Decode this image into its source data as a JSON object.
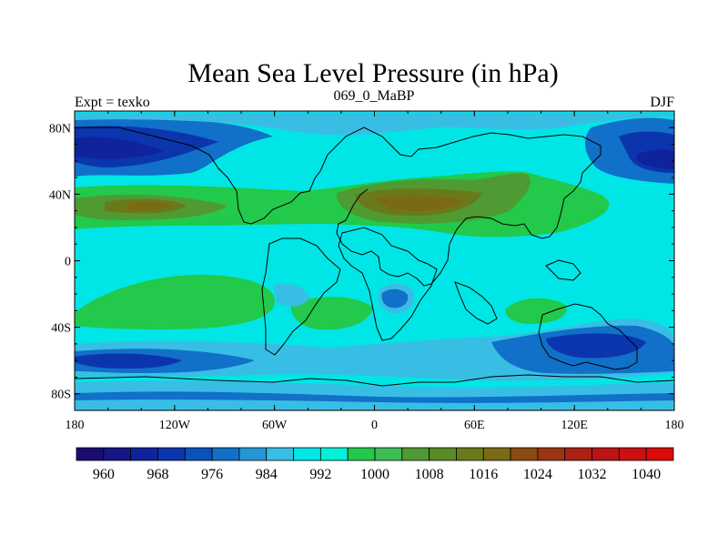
{
  "title": "Mean Sea Level Pressure (in hPa)",
  "subtitle_left": "Expt = texko",
  "subtitle_center": "069_0_MaBP",
  "subtitle_right": "DJF",
  "lat_ticks": [
    "80N",
    "40N",
    "0",
    "40S",
    "80S"
  ],
  "lon_ticks": [
    "180",
    "120W",
    "60W",
    "0",
    "60E",
    "120E",
    "180"
  ],
  "colorbar": {
    "labels": [
      "960",
      "968",
      "976",
      "984",
      "992",
      "1000",
      "1008",
      "1016",
      "1024",
      "1032",
      "1040"
    ],
    "colors": [
      "#1a0c6e",
      "#161586",
      "#10229c",
      "#0b35ad",
      "#0a52b9",
      "#1170c8",
      "#2497d6",
      "#38bee4",
      "#00e6e6",
      "#00f0d8",
      "#22c94a",
      "#3dbb55",
      "#4f9a32",
      "#5a8a26",
      "#6a7a1a",
      "#7a6a16",
      "#8a4a14",
      "#9a3412",
      "#aa2212",
      "#bb1414",
      "#cc0f0f",
      "#dd0a0a"
    ]
  },
  "map": {
    "lat_range": [
      -90,
      90
    ],
    "lon_range": [
      -180,
      180
    ],
    "background_color": "#00e6e6"
  }
}
